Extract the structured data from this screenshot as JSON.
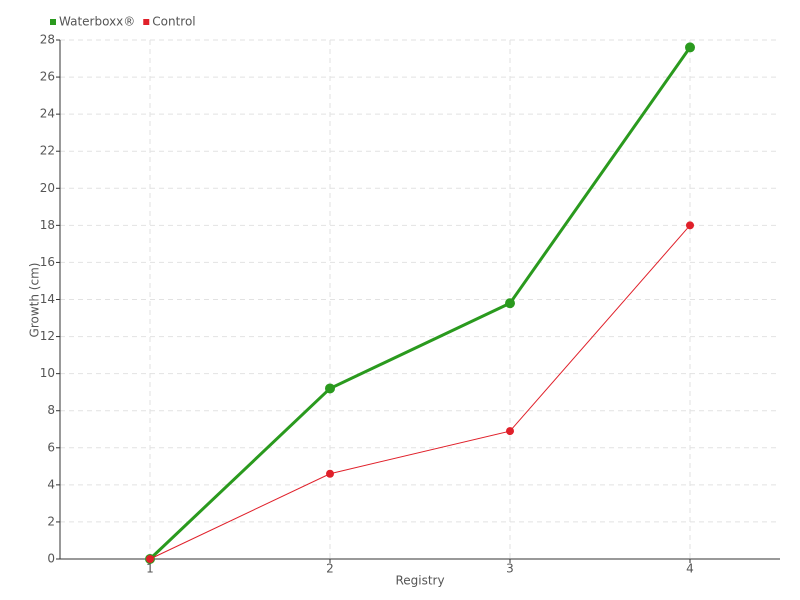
{
  "chart_data": {
    "type": "line",
    "x_label": "Registry",
    "y_label": "Growth (cm)",
    "categories": [
      "1",
      "2",
      "3",
      "4"
    ],
    "series": [
      {
        "name": "Waterboxx®",
        "color": "#2a9a1e",
        "values": [
          0,
          9.2,
          13.8,
          27.6
        ]
      },
      {
        "name": "Control",
        "color": "#e0202a",
        "values": [
          0,
          4.6,
          6.9,
          18
        ]
      }
    ],
    "ylim": [
      0,
      28
    ],
    "yticks": [
      0,
      2,
      4,
      6,
      8,
      10,
      12,
      14,
      16,
      18,
      20,
      22,
      24,
      26,
      28
    ],
    "grid": true,
    "legend": "top-left"
  }
}
